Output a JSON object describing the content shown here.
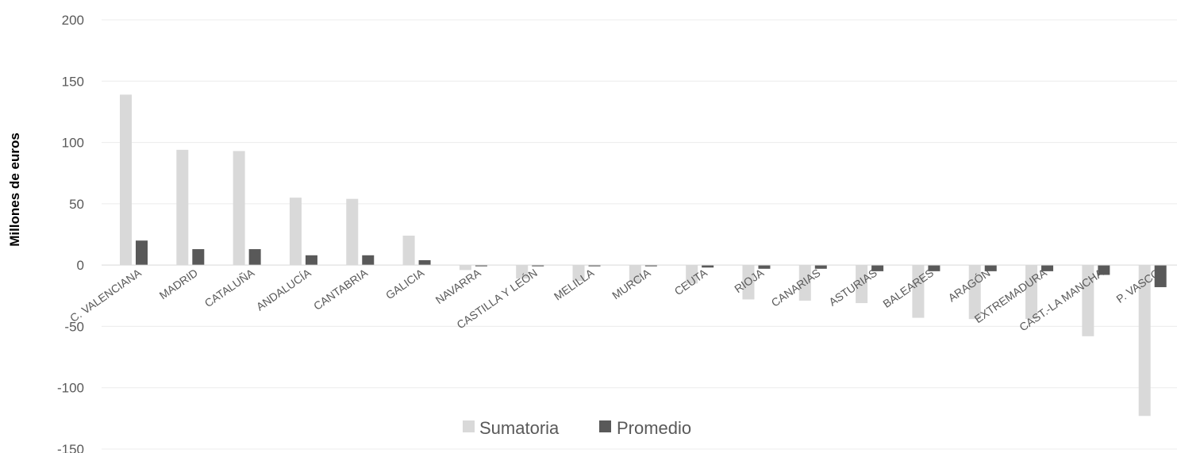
{
  "chart_data": {
    "type": "bar",
    "ylabel": "Millones de euros",
    "ylim": [
      -150,
      200
    ],
    "yticks": [
      200,
      150,
      100,
      50,
      0,
      -50,
      -100,
      -150
    ],
    "grid": true,
    "legend_position": "bottom-center",
    "categories": [
      "C. VALENCIANA",
      "MADRID",
      "CATALUÑA",
      "ANDALUCÍA",
      "CANTABRIA",
      "GALICIA",
      "NAVARRA",
      "CASTILLA Y LEÓN",
      "MELILLA",
      "MURCIA",
      "CEUTA",
      "RIOJA",
      "CANARIAS",
      "ASTURIAS",
      "BALEARES",
      "ARAGÓN",
      "EXTREMADURA",
      "CAST.-LA MANCHA",
      "P. VASCO"
    ],
    "series": [
      {
        "name": "Sumatoria",
        "color": "#d9d9d9",
        "values": [
          139,
          94,
          93,
          55,
          54,
          24,
          -4,
          -11,
          -13,
          -14,
          -15,
          -28,
          -29,
          -31,
          -43,
          -44,
          -44,
          -58,
          -123
        ]
      },
      {
        "name": "Promedio",
        "color": "#595959",
        "values": [
          20,
          13,
          13,
          8,
          8,
          4,
          -1,
          -1,
          -1,
          -1,
          -2,
          -3,
          -3,
          -5,
          -5,
          -5,
          -5,
          -8,
          -18
        ]
      }
    ]
  }
}
